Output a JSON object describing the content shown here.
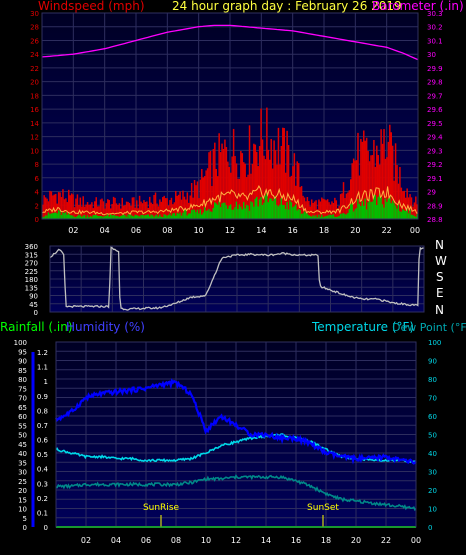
{
  "colors": {
    "background": "#000000",
    "plot_bg_top": "#000024",
    "plot_bg_bottom": "#00005a",
    "grid": "#2d2d5e",
    "wind_gust": "#e00000",
    "wind_avg": "#ffb040",
    "wind_speed": "#00c000",
    "barometer": "#ff00ff",
    "direction": "#c0c0c0",
    "humidity": "#0000ff",
    "temperature": "#00d8e8",
    "dew_point": "#008888",
    "rainfall": "#00ff00",
    "sun_marker": "#ffff00"
  },
  "header": {
    "windspeed_label": "Windspeed (mph)",
    "title": "24 hour graph day : February 26 2019",
    "barometer_label": "Barometer (.in)"
  },
  "compass": [
    "N",
    "W",
    "S",
    "E",
    "N"
  ],
  "bottom_header": {
    "rainfall_label": "Rainfall (.in)",
    "humidity_label": "Humidity (%)",
    "temperature_label": "Temperature (°F)",
    "dewpoint_label": "Dew Point (°F)"
  },
  "chart_data": [
    {
      "type": "line",
      "title": "24 hour graph day : February 26 2019",
      "x_ticks": [
        "02",
        "04",
        "06",
        "08",
        "10",
        "12",
        "14",
        "16",
        "18",
        "20",
        "22",
        "00"
      ],
      "y_left_label": "Windspeed (mph)",
      "y_left_ticks": [
        "30",
        "28",
        "26",
        "24",
        "22",
        "20",
        "18",
        "16",
        "14",
        "12",
        "10",
        "8",
        "6",
        "4",
        "2",
        "0"
      ],
      "ylim_left": [
        0,
        30
      ],
      "y_right_label": "Barometer (.in)",
      "y_right_ticks": [
        "30.3",
        "30.2",
        "30.1",
        "30",
        "29.9",
        "29.8",
        "29.7",
        "29.6",
        "29.5",
        "29.4",
        "29.3",
        "29.2",
        "29.1",
        "29",
        "28.9",
        "28.8"
      ],
      "ylim_right": [
        28.8,
        30.3
      ],
      "hours": [
        0,
        1,
        2,
        3,
        4,
        5,
        6,
        7,
        8,
        9,
        10,
        11,
        12,
        13,
        14,
        15,
        16,
        17,
        18,
        19,
        20,
        21,
        22,
        23,
        24
      ],
      "series": [
        {
          "name": "Barometer (.in)",
          "axis": "right",
          "values": [
            29.98,
            29.99,
            30.0,
            30.02,
            30.04,
            30.07,
            30.1,
            30.13,
            30.16,
            30.18,
            30.2,
            30.21,
            30.21,
            30.2,
            30.19,
            30.18,
            30.17,
            30.15,
            30.13,
            30.11,
            30.09,
            30.07,
            30.05,
            30.01,
            29.96
          ]
        },
        {
          "name": "Wind gust",
          "axis": "left",
          "values": [
            3,
            4,
            3,
            2.5,
            2.5,
            2.5,
            2.5,
            3,
            3,
            3.5,
            5,
            9,
            11,
            10,
            13,
            12,
            9,
            2.5,
            2.5,
            2.5,
            10,
            10,
            12,
            6,
            2
          ]
        },
        {
          "name": "Wind average",
          "axis": "left",
          "values": [
            1,
            1.5,
            1,
            1,
            0.8,
            0.8,
            1,
            1,
            1.2,
            1.5,
            2,
            3,
            3.5,
            3,
            4,
            3.5,
            3,
            1,
            1,
            1.2,
            3,
            3.5,
            4,
            2,
            1
          ]
        },
        {
          "name": "Wind speed",
          "axis": "left",
          "values": [
            0.5,
            1,
            0.5,
            0.5,
            0.5,
            0.5,
            0.5,
            0.5,
            0.5,
            1,
            1,
            2,
            2.5,
            2,
            3,
            2.5,
            2,
            0.5,
            0.5,
            0.5,
            2,
            2.5,
            3,
            1.5,
            0.5
          ]
        }
      ]
    },
    {
      "type": "line",
      "x_ticks": [
        "02",
        "04",
        "06",
        "08",
        "10",
        "12",
        "14",
        "16",
        "18",
        "20",
        "22",
        "00"
      ],
      "y_left_ticks": [
        "360",
        "315",
        "270",
        "225",
        "180",
        "135",
        "90",
        "45",
        "0"
      ],
      "ylim_left": [
        0,
        360
      ],
      "hours": [
        0,
        0.3,
        0.6,
        0.9,
        1.0,
        2,
        3,
        3.8,
        3.9,
        4.4,
        4.5,
        5,
        6,
        7,
        8,
        9,
        10,
        11,
        11.2,
        12,
        13,
        14,
        15,
        16,
        17.2,
        17.3,
        18,
        19,
        20,
        21,
        22,
        23.6,
        23.7,
        24
      ],
      "series": [
        {
          "name": "Wind direction",
          "values": [
            300,
            320,
            340,
            310,
            30,
            30,
            30,
            30,
            350,
            330,
            20,
            15,
            20,
            22,
            45,
            80,
            90,
            290,
            300,
            310,
            315,
            310,
            320,
            310,
            310,
            140,
            120,
            90,
            70,
            70,
            50,
            35,
            350,
            345
          ]
        }
      ]
    },
    {
      "type": "line",
      "x_ticks": [
        "02",
        "04",
        "06",
        "08",
        "10",
        "12",
        "14",
        "16",
        "18",
        "20",
        "22",
        "00"
      ],
      "y_left_label": "Rainfall (.in)",
      "y_left_ticks": [
        "1.2",
        "1.1",
        "1",
        "0.9",
        "0.8",
        "0.7",
        "0.6",
        "0.5",
        "0.4",
        "0.3",
        "0.2",
        "0.1",
        "0"
      ],
      "ylim_left": [
        0,
        1.2
      ],
      "y_humidity_label": "Humidity (%)",
      "y_humidity_ticks": [
        "100",
        "95",
        "90",
        "85",
        "80",
        "75",
        "70",
        "65",
        "60",
        "55",
        "50",
        "45",
        "40",
        "35",
        "30",
        "25",
        "20",
        "15",
        "10",
        "5",
        "0"
      ],
      "ylim_humidity": [
        0,
        100
      ],
      "y_right_label": "Temperature (°F)",
      "y_right_ticks": [
        "100",
        "90",
        "80",
        "70",
        "60",
        "50",
        "40",
        "30",
        "20",
        "10",
        "0"
      ],
      "ylim_right": [
        0,
        100
      ],
      "annotations": [
        {
          "text": "SunRise",
          "hour": 7
        },
        {
          "text": "SunSet",
          "hour": 17.8
        }
      ],
      "hours": [
        0,
        1,
        2,
        3,
        4,
        5,
        6,
        7,
        8,
        9,
        10,
        11,
        12,
        13,
        14,
        15,
        16,
        17,
        18,
        19,
        20,
        21,
        22,
        23,
        24
      ],
      "series": [
        {
          "name": "Humidity (%)",
          "axis": "humidity",
          "values": [
            58,
            62,
            70,
            72,
            73,
            74,
            75,
            77,
            78,
            72,
            52,
            60,
            55,
            50,
            50,
            48,
            48,
            45,
            40,
            38,
            37,
            37,
            38,
            36,
            35
          ]
        },
        {
          "name": "Temperature (°F)",
          "values": [
            42,
            40,
            38,
            38,
            37,
            37,
            36,
            36,
            36,
            37,
            40,
            44,
            46,
            48,
            49,
            50,
            48,
            46,
            42,
            38,
            37,
            36,
            36,
            36,
            35
          ]
        },
        {
          "name": "Dew Point (°F)",
          "values": [
            22,
            22,
            23,
            23,
            23,
            23,
            23,
            23,
            23,
            24,
            26,
            26,
            27,
            27,
            27,
            27,
            25,
            22,
            18,
            15,
            14,
            13,
            12,
            11,
            10
          ]
        },
        {
          "name": "Rainfall (.in)",
          "axis": "left",
          "values": [
            0,
            0,
            0,
            0,
            0,
            0,
            0,
            0,
            0,
            0,
            0,
            0,
            0,
            0,
            0,
            0,
            0,
            0,
            0,
            0,
            0,
            0,
            0,
            0,
            0
          ]
        }
      ]
    }
  ]
}
